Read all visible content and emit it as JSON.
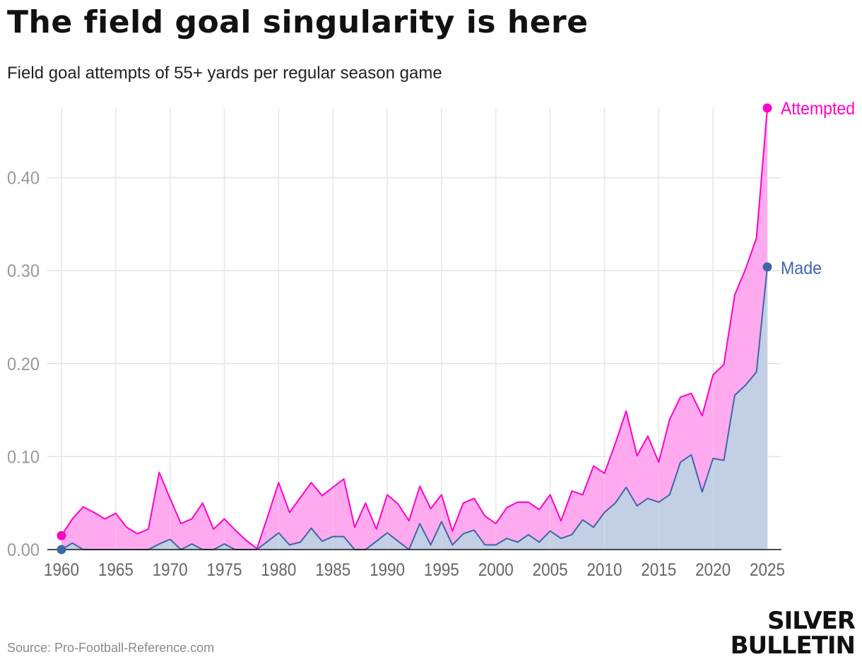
{
  "title": "The field goal singularity is here",
  "subtitle": "Field goal attempts of 55+ yards per regular season game",
  "source": "Source: Pro-Football-Reference.com",
  "logo": {
    "line1": "SILVER",
    "line2": "BULLETIN"
  },
  "colors": {
    "attempted": "#ff00c8",
    "attempted_fill": "#ffaaee",
    "made": "#3d67a8",
    "made_fill": "#c2cfe4",
    "grid": "#e2e2e2",
    "tick": "#999999"
  },
  "chart_data": {
    "type": "area",
    "title": "The field goal singularity is here",
    "subtitle": "Field goal attempts of 55+ yards per regular season game",
    "xlabel": "",
    "ylabel": "",
    "xlim": [
      1960,
      2025
    ],
    "ylim": [
      0,
      0.5
    ],
    "x_ticks": [
      1960,
      1965,
      1970,
      1975,
      1980,
      1985,
      1990,
      1995,
      2000,
      2005,
      2010,
      2015,
      2020,
      2025
    ],
    "y_ticks": [
      0,
      0.1,
      0.2,
      0.3,
      0.4
    ],
    "y_tick_labels": [
      "0.00",
      "0.10",
      "0.20",
      "0.30",
      "0.40"
    ],
    "grid": true,
    "x": [
      1960,
      1961,
      1962,
      1963,
      1964,
      1965,
      1966,
      1967,
      1968,
      1969,
      1970,
      1971,
      1972,
      1973,
      1974,
      1975,
      1976,
      1977,
      1978,
      1979,
      1980,
      1981,
      1982,
      1983,
      1984,
      1985,
      1986,
      1987,
      1988,
      1989,
      1990,
      1991,
      1992,
      1993,
      1994,
      1995,
      1996,
      1997,
      1998,
      1999,
      2000,
      2001,
      2002,
      2003,
      2004,
      2005,
      2006,
      2007,
      2008,
      2009,
      2010,
      2011,
      2012,
      2013,
      2014,
      2015,
      2016,
      2017,
      2018,
      2019,
      2020,
      2021,
      2022,
      2023,
      2024,
      2025
    ],
    "series": [
      {
        "name": "Attempted",
        "label": "Attempted",
        "values": [
          0.015,
          0.033,
          0.046,
          0.04,
          0.033,
          0.039,
          0.024,
          0.017,
          0.022,
          0.083,
          0.055,
          0.028,
          0.033,
          0.05,
          0.022,
          0.033,
          0.021,
          0.01,
          0.001,
          0.036,
          0.072,
          0.04,
          0.056,
          0.072,
          0.058,
          0.067,
          0.076,
          0.024,
          0.05,
          0.022,
          0.059,
          0.049,
          0.031,
          0.068,
          0.044,
          0.059,
          0.02,
          0.05,
          0.055,
          0.036,
          0.028,
          0.045,
          0.051,
          0.051,
          0.043,
          0.059,
          0.031,
          0.063,
          0.059,
          0.09,
          0.082,
          0.114,
          0.149,
          0.101,
          0.122,
          0.094,
          0.14,
          0.164,
          0.168,
          0.144,
          0.188,
          0.199,
          0.274,
          0.302,
          0.335,
          0.475
        ]
      },
      {
        "name": "Made",
        "label": "Made",
        "values": [
          0.0,
          0.007,
          0.0,
          0.0,
          0.0,
          0.0,
          0.0,
          0.0,
          0.0,
          0.006,
          0.011,
          0.0,
          0.006,
          0.0,
          0.0,
          0.006,
          0.0,
          0.0,
          0.0,
          0.009,
          0.018,
          0.005,
          0.008,
          0.023,
          0.009,
          0.014,
          0.014,
          0.0,
          0.0,
          0.009,
          0.018,
          0.009,
          0.0,
          0.028,
          0.005,
          0.03,
          0.005,
          0.017,
          0.021,
          0.005,
          0.005,
          0.012,
          0.008,
          0.016,
          0.008,
          0.02,
          0.012,
          0.016,
          0.032,
          0.024,
          0.04,
          0.05,
          0.067,
          0.047,
          0.055,
          0.051,
          0.059,
          0.094,
          0.102,
          0.062,
          0.098,
          0.096,
          0.166,
          0.177,
          0.191,
          0.304
        ]
      }
    ]
  }
}
